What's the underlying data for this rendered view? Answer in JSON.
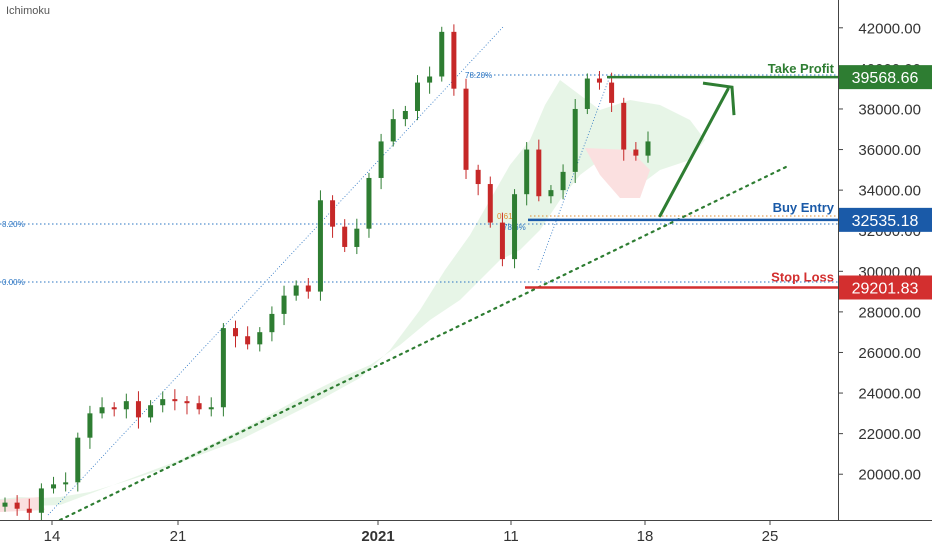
{
  "indicator": "Ichimoku",
  "colors": {
    "up": "#2e7d32",
    "down": "#c62828",
    "take_profit": "#2e7d32",
    "buy_entry": "#1a5aa8",
    "stop_loss": "#d32f2f",
    "fib": "#2a74c2",
    "fib_orange": "#e08a2e",
    "trendline": "#2e7d32",
    "cloud_bull": "#e3f3e3",
    "cloud_bear": "#fbe0e0",
    "axis_text": "#333333"
  },
  "levels": {
    "take_profit": {
      "label": "Take Profit",
      "value": "39568.66"
    },
    "buy_entry": {
      "label": "Buy Entry",
      "value": "32535.18"
    },
    "stop_loss": {
      "label": "Stop Loss",
      "value": "29201.83"
    }
  },
  "fib_labels": {
    "top_pct": "78.20%",
    "left_pct_1": "8.20%",
    "left_pct_2": "0.00%",
    "ratio": "0.618",
    "ratio_pct": "78.6%"
  },
  "chart_data": {
    "type": "line",
    "y_ticks": [
      "42000.00",
      "40000.00",
      "38000.00",
      "36000.00",
      "34000.00",
      "32000.00",
      "30000.00",
      "28000.00",
      "26000.00",
      "24000.00",
      "22000.00",
      "20000.00"
    ],
    "x_ticks": [
      "14",
      "21",
      "2021",
      "11",
      "18",
      "25"
    ],
    "ylim": [
      18000,
      43000
    ],
    "series": [
      {
        "values": [
          18600,
          18300,
          18100,
          19300,
          19500,
          19600,
          21800,
          23000,
          23300,
          23200,
          23600,
          22800,
          23400,
          23700,
          23600,
          23500,
          23200,
          23300,
          27200,
          26800,
          26400,
          27000,
          27900,
          28800,
          29300,
          29000,
          33500,
          32200,
          31200,
          32100,
          34600,
          36400,
          37500,
          37900,
          39300,
          39600,
          41800,
          39000,
          35000,
          34300,
          32400,
          30600,
          33800,
          36000,
          33700,
          34000,
          34900,
          38000,
          39500,
          39300,
          38300,
          36000,
          35700,
          36400
        ]
      }
    ]
  }
}
